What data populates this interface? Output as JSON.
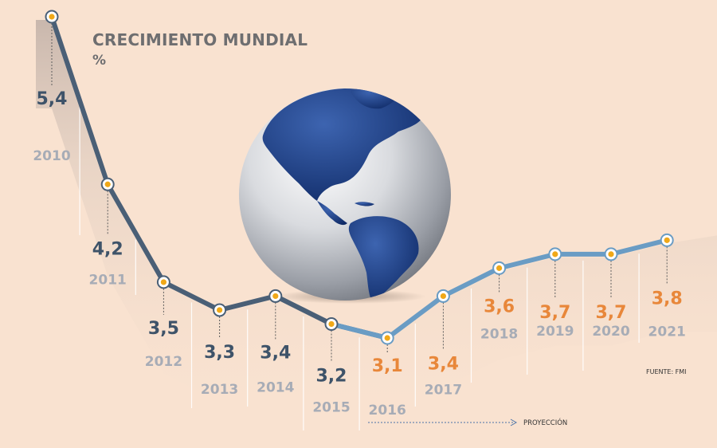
{
  "header": {
    "title": "CRECIMIENTO MUNDIAL",
    "unit": "%"
  },
  "footer": {
    "source": "FUENTE: FMI",
    "projection_label": "PROYECCIÓN"
  },
  "colors": {
    "background": "#f9e2d0",
    "historical_line": "#4a5f76",
    "projection_line": "#6a9cc4",
    "historical_value": "#3e5369",
    "projection_value": "#e8873a",
    "year_label": "#a7acb6",
    "marker_fill": "#f0a818"
  },
  "chart_data": {
    "type": "line",
    "title": "CRECIMIENTO MUNDIAL",
    "ylabel": "%",
    "categories": [
      "2010",
      "2011",
      "2012",
      "2013",
      "2014",
      "2015",
      "2016",
      "2017",
      "2018",
      "2019",
      "2020",
      "2021"
    ],
    "value_labels": [
      "5,4",
      "4,2",
      "3,5",
      "3,3",
      "3,4",
      "3,2",
      "3,1",
      "3,4",
      "3,6",
      "3,7",
      "3,7",
      "3,8"
    ],
    "values": [
      5.4,
      4.2,
      3.5,
      3.3,
      3.4,
      3.2,
      3.1,
      3.4,
      3.6,
      3.7,
      3.7,
      3.8
    ],
    "projection_start": "2016",
    "grid": false,
    "legend": "none"
  }
}
